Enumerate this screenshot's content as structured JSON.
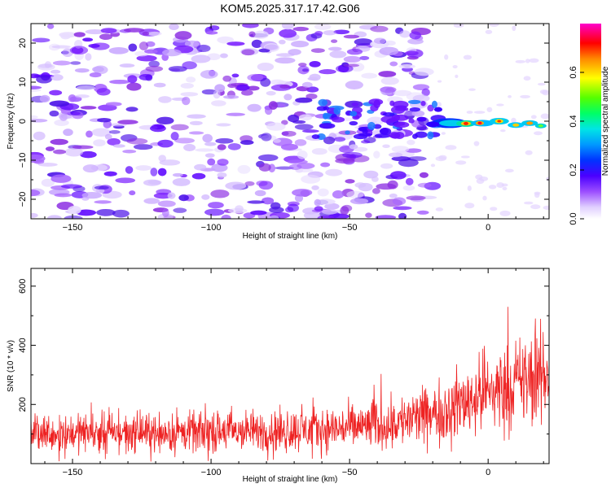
{
  "title": "KOM5.2025.317.17.42.G06",
  "chart_data": [
    {
      "type": "heatmap",
      "title": "KOM5.2025.317.17.42.G06",
      "xlabel": "Height of straight line (km)",
      "ylabel": "Frequency (Hz)",
      "xlim": [
        -165,
        22
      ],
      "ylim": [
        -25,
        25
      ],
      "xticks": [
        -150,
        -100,
        -50,
        0
      ],
      "yticks": [
        -20,
        -10,
        0,
        10,
        20
      ],
      "colorbar": {
        "label": "Normalized spectral amplitude",
        "range": [
          0,
          0.8
        ],
        "ticks": [
          0.0,
          0.2,
          0.4,
          0.6
        ],
        "colormap": [
          "#ffffff",
          "#d9c2ff",
          "#8a2be2",
          "#4000ff",
          "#0040ff",
          "#00c0ff",
          "#00ffaa",
          "#40ff00",
          "#ffff00",
          "#ff8000",
          "#ff0000",
          "#ff00cc"
        ]
      },
      "features": [
        {
          "x_range": [
            -165,
            -20
          ],
          "freq_range": [
            -25,
            25
          ],
          "amplitude": 0.12,
          "description": "diffuse noise"
        },
        {
          "x_range": [
            -60,
            -20
          ],
          "freq_center": 0,
          "amplitude": 0.2
        },
        {
          "x_range": [
            -15,
            20
          ],
          "freq_center": -0.5,
          "amplitude": 0.75
        }
      ]
    },
    {
      "type": "line",
      "xlabel": "Height of straight line (km)",
      "ylabel": "SNR (10 * v/v)",
      "xlim": [
        -165,
        22
      ],
      "ylim": [
        0,
        660
      ],
      "xticks": [
        -150,
        -100,
        -50,
        0
      ],
      "yticks": [
        200,
        400,
        600
      ],
      "series": [
        {
          "name": "SNR",
          "color": "#ee2222",
          "trend": [
            [
              -165,
              105
            ],
            [
              -100,
              105
            ],
            [
              -60,
              115
            ],
            [
              -40,
              130
            ],
            [
              -20,
              165
            ],
            [
              0,
              245
            ],
            [
              22,
              300
            ]
          ],
          "spread": [
            [
              -165,
              70
            ],
            [
              -100,
              75
            ],
            [
              -50,
              85
            ],
            [
              -20,
              110
            ],
            [
              0,
              150
            ],
            [
              22,
              190
            ]
          ]
        }
      ]
    }
  ]
}
